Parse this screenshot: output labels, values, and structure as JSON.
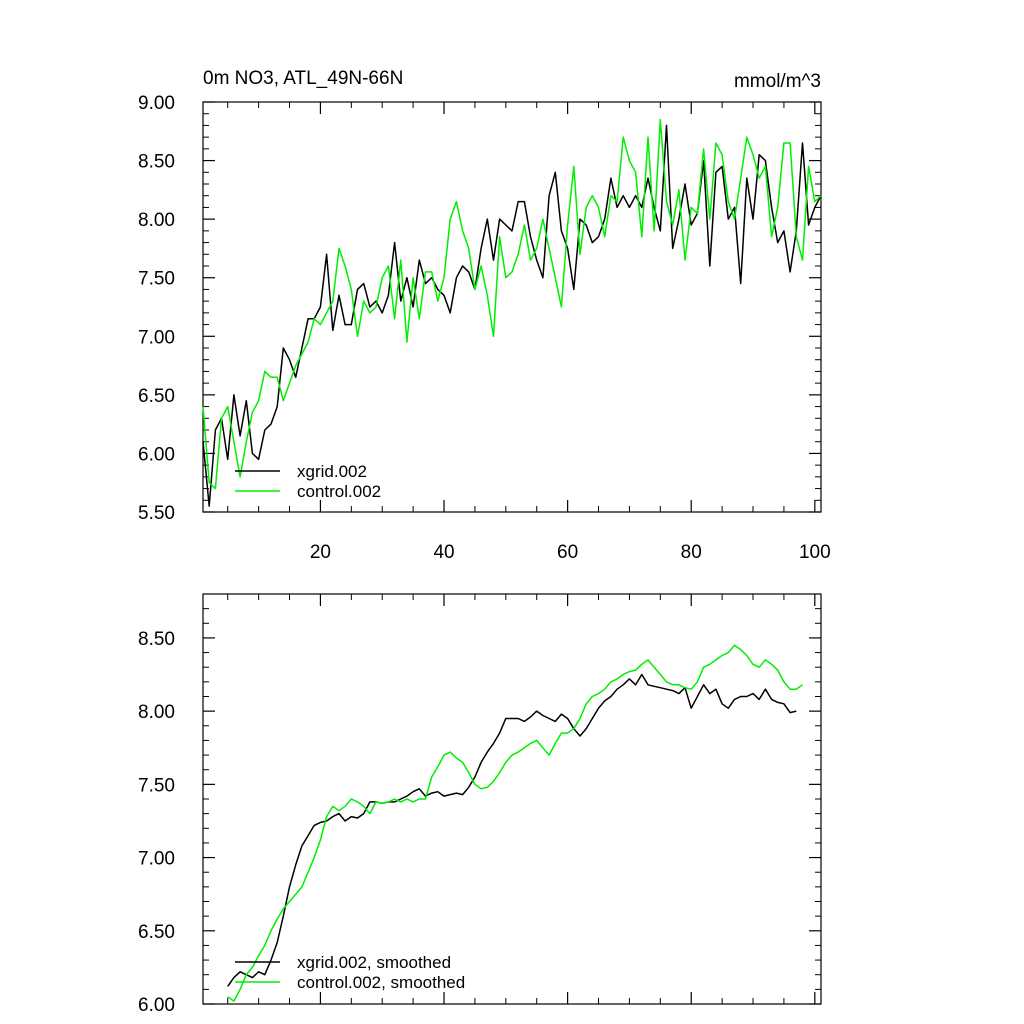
{
  "chart_data": [
    {
      "type": "line",
      "title": "0m NO3, ATL_49N-66N",
      "units": "mmol/m^3",
      "xlim": [
        1,
        101
      ],
      "ylim": [
        5.5,
        9.0
      ],
      "xticks": [
        20,
        40,
        60,
        80,
        100
      ],
      "yticks": [
        5.5,
        6.0,
        6.5,
        7.0,
        7.5,
        8.0,
        8.5,
        9.0
      ],
      "ytick_labels": [
        "5.50",
        "6.00",
        "6.50",
        "7.00",
        "7.50",
        "8.00",
        "8.50",
        "9.00"
      ],
      "xtick_labels": [
        "20",
        "40",
        "60",
        "80",
        "100"
      ],
      "legend": [
        "xgrid.002",
        "control.002"
      ],
      "series": [
        {
          "name": "xgrid.002",
          "color": "#000000",
          "x": [
            1,
            2,
            3,
            4,
            5,
            6,
            7,
            8,
            9,
            10,
            11,
            12,
            13,
            14,
            15,
            16,
            17,
            18,
            19,
            20,
            21,
            22,
            23,
            24,
            25,
            26,
            27,
            28,
            29,
            30,
            31,
            32,
            33,
            34,
            35,
            36,
            37,
            38,
            39,
            40,
            41,
            42,
            43,
            44,
            45,
            46,
            47,
            48,
            49,
            50,
            51,
            52,
            53,
            54,
            55,
            56,
            57,
            58,
            59,
            60,
            61,
            62,
            63,
            64,
            65,
            66,
            67,
            68,
            69,
            70,
            71,
            72,
            73,
            74,
            75,
            76,
            77,
            78,
            79,
            80,
            81,
            82,
            83,
            84,
            85,
            86,
            87,
            88,
            89,
            90,
            91,
            92,
            93,
            94,
            95,
            96,
            97,
            98,
            99,
            100,
            101
          ],
          "values": [
            6.1,
            5.55,
            6.2,
            6.3,
            5.95,
            6.5,
            6.15,
            6.45,
            6.0,
            5.95,
            6.2,
            6.25,
            6.4,
            6.9,
            6.8,
            6.65,
            6.9,
            7.15,
            7.15,
            7.25,
            7.7,
            7.05,
            7.35,
            7.1,
            7.1,
            7.4,
            7.45,
            7.25,
            7.3,
            7.2,
            7.35,
            7.8,
            7.3,
            7.5,
            7.25,
            7.65,
            7.45,
            7.5,
            7.4,
            7.35,
            7.2,
            7.5,
            7.6,
            7.55,
            7.4,
            7.75,
            8.0,
            7.65,
            8.0,
            7.95,
            7.9,
            8.15,
            8.15,
            7.85,
            7.65,
            7.5,
            8.2,
            8.4,
            7.9,
            7.75,
            7.4,
            8.0,
            7.95,
            7.8,
            7.85,
            8.0,
            8.35,
            8.1,
            8.2,
            8.1,
            8.2,
            8.1,
            8.35,
            8.1,
            7.9,
            8.8,
            7.75,
            8.0,
            8.3,
            7.95,
            8.05,
            8.5,
            7.6,
            8.4,
            8.45,
            8.0,
            8.1,
            7.45,
            8.35,
            8.0,
            8.55,
            8.5,
            8.1,
            7.8,
            7.9,
            7.55,
            7.9,
            8.65,
            7.95,
            8.1,
            8.2
          ]
        },
        {
          "name": "control.002",
          "color": "#00ee00",
          "x": [
            1,
            2,
            3,
            4,
            5,
            6,
            7,
            8,
            9,
            10,
            11,
            12,
            13,
            14,
            15,
            16,
            17,
            18,
            19,
            20,
            21,
            22,
            23,
            24,
            25,
            26,
            27,
            28,
            29,
            30,
            31,
            32,
            33,
            34,
            35,
            36,
            37,
            38,
            39,
            40,
            41,
            42,
            43,
            44,
            45,
            46,
            47,
            48,
            49,
            50,
            51,
            52,
            53,
            54,
            55,
            56,
            57,
            58,
            59,
            60,
            61,
            62,
            63,
            64,
            65,
            66,
            67,
            68,
            69,
            70,
            71,
            72,
            73,
            74,
            75,
            76,
            77,
            78,
            79,
            80,
            81,
            82,
            83,
            84,
            85,
            86,
            87,
            88,
            89,
            90,
            91,
            92,
            93,
            94,
            95,
            96,
            97,
            98,
            99,
            100,
            101
          ],
          "values": [
            6.4,
            5.75,
            5.7,
            6.3,
            6.4,
            6.1,
            5.8,
            6.1,
            6.35,
            6.45,
            6.7,
            6.65,
            6.65,
            6.45,
            6.6,
            6.75,
            6.85,
            6.95,
            7.15,
            7.1,
            7.2,
            7.3,
            7.75,
            7.6,
            7.4,
            7.0,
            7.3,
            7.2,
            7.25,
            7.5,
            7.6,
            7.15,
            7.65,
            6.95,
            7.5,
            7.15,
            7.55,
            7.55,
            7.3,
            7.5,
            8.0,
            8.15,
            7.9,
            7.75,
            7.4,
            7.6,
            7.35,
            7.0,
            7.85,
            7.5,
            7.55,
            7.7,
            7.95,
            7.65,
            7.75,
            8.0,
            7.75,
            7.5,
            7.25,
            7.95,
            8.45,
            7.7,
            8.1,
            8.2,
            8.1,
            7.85,
            8.2,
            8.15,
            8.7,
            8.5,
            8.4,
            7.85,
            8.7,
            7.9,
            8.85,
            8.15,
            7.95,
            8.25,
            7.65,
            8.1,
            8.05,
            8.6,
            8.0,
            8.65,
            8.55,
            8.15,
            8.0,
            8.35,
            8.7,
            8.55,
            8.35,
            8.45,
            7.85,
            8.1,
            8.65,
            8.65,
            7.85,
            7.65,
            8.45,
            8.15,
            8.2
          ]
        }
      ]
    },
    {
      "type": "line",
      "xlim": [
        1,
        101
      ],
      "ylim": [
        6.0,
        8.8
      ],
      "xticks": [
        20,
        40,
        60,
        80,
        100
      ],
      "yticks": [
        6.0,
        6.5,
        7.0,
        7.5,
        8.0,
        8.5
      ],
      "ytick_labels": [
        "6.00",
        "6.50",
        "7.00",
        "7.50",
        "8.00",
        "8.50"
      ],
      "legend": [
        "xgrid.002, smoothed",
        "control.002, smoothed"
      ],
      "series": [
        {
          "name": "xgrid.002, smoothed",
          "color": "#000000",
          "x": [
            5,
            6,
            7,
            8,
            9,
            10,
            11,
            12,
            13,
            14,
            15,
            16,
            17,
            18,
            19,
            20,
            21,
            22,
            23,
            24,
            25,
            26,
            27,
            28,
            29,
            30,
            31,
            32,
            33,
            34,
            35,
            36,
            37,
            38,
            39,
            40,
            41,
            42,
            43,
            44,
            45,
            46,
            47,
            48,
            49,
            50,
            51,
            52,
            53,
            54,
            55,
            56,
            57,
            58,
            59,
            60,
            61,
            62,
            63,
            64,
            65,
            66,
            67,
            68,
            69,
            70,
            71,
            72,
            73,
            74,
            75,
            76,
            77,
            78,
            79,
            80,
            81,
            82,
            83,
            84,
            85,
            86,
            87,
            88,
            89,
            90,
            91,
            92,
            93,
            94,
            95,
            96,
            97
          ],
          "values": [
            6.12,
            6.18,
            6.22,
            6.2,
            6.18,
            6.22,
            6.2,
            6.3,
            6.42,
            6.6,
            6.8,
            6.95,
            7.08,
            7.15,
            7.22,
            7.24,
            7.25,
            7.28,
            7.3,
            7.25,
            7.28,
            7.27,
            7.3,
            7.38,
            7.38,
            7.37,
            7.38,
            7.38,
            7.4,
            7.42,
            7.45,
            7.47,
            7.42,
            7.44,
            7.45,
            7.42,
            7.43,
            7.44,
            7.43,
            7.48,
            7.55,
            7.65,
            7.72,
            7.78,
            7.85,
            7.95,
            7.95,
            7.95,
            7.93,
            7.96,
            8.0,
            7.97,
            7.95,
            7.93,
            7.98,
            7.95,
            7.88,
            7.83,
            7.88,
            7.95,
            8.02,
            8.07,
            8.1,
            8.15,
            8.18,
            8.22,
            8.18,
            8.25,
            8.18,
            8.17,
            8.16,
            8.15,
            8.14,
            8.12,
            8.16,
            8.02,
            8.1,
            8.18,
            8.12,
            8.15,
            8.05,
            8.02,
            8.08,
            8.1,
            8.1,
            8.12,
            8.08,
            8.15,
            8.08,
            8.06,
            8.05,
            7.99,
            8.0
          ]
        },
        {
          "name": "control.002, smoothed",
          "color": "#00ee00",
          "x": [
            5,
            6,
            7,
            8,
            9,
            10,
            11,
            12,
            13,
            14,
            15,
            16,
            17,
            18,
            19,
            20,
            21,
            22,
            23,
            24,
            25,
            26,
            27,
            28,
            29,
            30,
            31,
            32,
            33,
            34,
            35,
            36,
            37,
            38,
            39,
            40,
            41,
            42,
            43,
            44,
            45,
            46,
            47,
            48,
            49,
            50,
            51,
            52,
            53,
            54,
            55,
            56,
            57,
            58,
            59,
            60,
            61,
            62,
            63,
            64,
            65,
            66,
            67,
            68,
            69,
            70,
            71,
            72,
            73,
            74,
            75,
            76,
            77,
            78,
            79,
            80,
            81,
            82,
            83,
            84,
            85,
            86,
            87,
            88,
            89,
            90,
            91,
            92,
            93,
            94,
            95,
            96,
            97,
            98
          ],
          "values": [
            6.05,
            6.02,
            6.1,
            6.2,
            6.25,
            6.33,
            6.4,
            6.5,
            6.58,
            6.65,
            6.7,
            6.75,
            6.8,
            6.9,
            7.0,
            7.12,
            7.28,
            7.35,
            7.32,
            7.35,
            7.4,
            7.38,
            7.35,
            7.3,
            7.38,
            7.37,
            7.38,
            7.4,
            7.38,
            7.4,
            7.38,
            7.4,
            7.4,
            7.55,
            7.62,
            7.7,
            7.72,
            7.68,
            7.65,
            7.58,
            7.5,
            7.47,
            7.48,
            7.52,
            7.58,
            7.65,
            7.7,
            7.72,
            7.75,
            7.78,
            7.8,
            7.75,
            7.7,
            7.78,
            7.85,
            7.85,
            7.88,
            7.95,
            8.05,
            8.1,
            8.12,
            8.15,
            8.2,
            8.22,
            8.25,
            8.27,
            8.28,
            8.32,
            8.35,
            8.3,
            8.25,
            8.2,
            8.18,
            8.18,
            8.16,
            8.15,
            8.2,
            8.3,
            8.32,
            8.35,
            8.38,
            8.4,
            8.45,
            8.42,
            8.38,
            8.32,
            8.3,
            8.35,
            8.32,
            8.28,
            8.2,
            8.15,
            8.15,
            8.18
          ]
        }
      ]
    }
  ]
}
